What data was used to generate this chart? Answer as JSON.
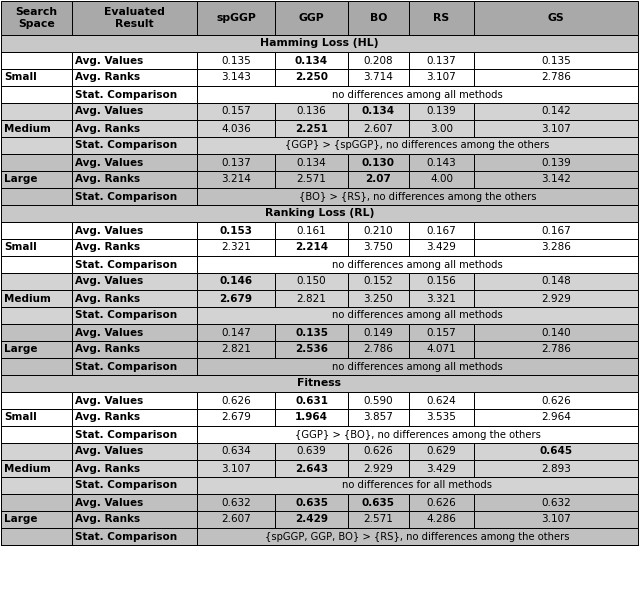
{
  "col_headers": [
    "Search\nSpace",
    "Evaluated\nResult",
    "spGGP",
    "GGP",
    "BO",
    "RS",
    "GS"
  ],
  "sections": [
    {
      "name": "Hamming Loss (HL)",
      "groups": [
        {
          "label": "Small",
          "rows": [
            {
              "name": "Avg. Values",
              "vals": [
                "0.135",
                "0.134",
                "0.208",
                "0.137",
                "0.135"
              ],
              "bold": [
                false,
                true,
                false,
                false,
                false
              ]
            },
            {
              "name": "Avg. Ranks",
              "vals": [
                "3.143",
                "2.250",
                "3.714",
                "3.107",
                "2.786"
              ],
              "bold": [
                false,
                true,
                false,
                false,
                false
              ]
            },
            {
              "name": "Stat. Comparison",
              "span_text": "no differences among all methods"
            }
          ],
          "bg": "#ffffff"
        },
        {
          "label": "Medium",
          "rows": [
            {
              "name": "Avg. Values",
              "vals": [
                "0.157",
                "0.136",
                "0.134",
                "0.139",
                "0.142"
              ],
              "bold": [
                false,
                false,
                true,
                false,
                false
              ]
            },
            {
              "name": "Avg. Ranks",
              "vals": [
                "4.036",
                "2.251",
                "2.607",
                "3.00",
                "3.107"
              ],
              "bold": [
                false,
                true,
                false,
                false,
                false
              ]
            },
            {
              "name": "Stat. Comparison",
              "span_text": "{GGP} > {spGGP}, no differences among the others"
            }
          ],
          "bg": "#d3d3d3"
        },
        {
          "label": "Large",
          "rows": [
            {
              "name": "Avg. Values",
              "vals": [
                "0.137",
                "0.134",
                "0.130",
                "0.143",
                "0.139"
              ],
              "bold": [
                false,
                false,
                true,
                false,
                false
              ]
            },
            {
              "name": "Avg. Ranks",
              "vals": [
                "3.214",
                "2.571",
                "2.07",
                "4.00",
                "3.142"
              ],
              "bold": [
                false,
                false,
                true,
                false,
                false
              ]
            },
            {
              "name": "Stat. Comparison",
              "span_text": "{BO} > {RS}, no differences among the others"
            }
          ],
          "bg": "#c0c0c0"
        }
      ]
    },
    {
      "name": "Ranking Loss (RL)",
      "groups": [
        {
          "label": "Small",
          "rows": [
            {
              "name": "Avg. Values",
              "vals": [
                "0.153",
                "0.161",
                "0.210",
                "0.167",
                "0.167"
              ],
              "bold": [
                true,
                false,
                false,
                false,
                false
              ]
            },
            {
              "name": "Avg. Ranks",
              "vals": [
                "2.321",
                "2.214",
                "3.750",
                "3.429",
                "3.286"
              ],
              "bold": [
                false,
                true,
                false,
                false,
                false
              ]
            },
            {
              "name": "Stat. Comparison",
              "span_text": "no differences among all methods"
            }
          ],
          "bg": "#ffffff"
        },
        {
          "label": "Medium",
          "rows": [
            {
              "name": "Avg. Values",
              "vals": [
                "0.146",
                "0.150",
                "0.152",
                "0.156",
                "0.148"
              ],
              "bold": [
                true,
                false,
                false,
                false,
                false
              ]
            },
            {
              "name": "Avg. Ranks",
              "vals": [
                "2.679",
                "2.821",
                "3.250",
                "3.321",
                "2.929"
              ],
              "bold": [
                true,
                false,
                false,
                false,
                false
              ]
            },
            {
              "name": "Stat. Comparison",
              "span_text": "no differences among all methods"
            }
          ],
          "bg": "#d3d3d3"
        },
        {
          "label": "Large",
          "rows": [
            {
              "name": "Avg. Values",
              "vals": [
                "0.147",
                "0.135",
                "0.149",
                "0.157",
                "0.140"
              ],
              "bold": [
                false,
                true,
                false,
                false,
                false
              ]
            },
            {
              "name": "Avg. Ranks",
              "vals": [
                "2.821",
                "2.536",
                "2.786",
                "4.071",
                "2.786"
              ],
              "bold": [
                false,
                true,
                false,
                false,
                false
              ]
            },
            {
              "name": "Stat. Comparison",
              "span_text": "no differences among all methods"
            }
          ],
          "bg": "#c0c0c0"
        }
      ]
    },
    {
      "name": "Fitness",
      "groups": [
        {
          "label": "Small",
          "rows": [
            {
              "name": "Avg. Values",
              "vals": [
                "0.626",
                "0.631",
                "0.590",
                "0.624",
                "0.626"
              ],
              "bold": [
                false,
                true,
                false,
                false,
                false
              ]
            },
            {
              "name": "Avg. Ranks",
              "vals": [
                "2.679",
                "1.964",
                "3.857",
                "3.535",
                "2.964"
              ],
              "bold": [
                false,
                true,
                false,
                false,
                false
              ]
            },
            {
              "name": "Stat. Comparison",
              "span_text": "{GGP} > {BO}, no differences among the others"
            }
          ],
          "bg": "#ffffff"
        },
        {
          "label": "Medium",
          "rows": [
            {
              "name": "Avg. Values",
              "vals": [
                "0.634",
                "0.639",
                "0.626",
                "0.629",
                "0.645"
              ],
              "bold": [
                false,
                false,
                false,
                false,
                true
              ]
            },
            {
              "name": "Avg. Ranks",
              "vals": [
                "3.107",
                "2.643",
                "2.929",
                "3.429",
                "2.893"
              ],
              "bold": [
                false,
                true,
                false,
                false,
                false
              ]
            },
            {
              "name": "Stat. Comparison",
              "span_text": "no differences for all methods"
            }
          ],
          "bg": "#d3d3d3"
        },
        {
          "label": "Large",
          "rows": [
            {
              "name": "Avg. Values",
              "vals": [
                "0.632",
                "0.635",
                "0.635",
                "0.626",
                "0.632"
              ],
              "bold": [
                false,
                true,
                true,
                false,
                false
              ]
            },
            {
              "name": "Avg. Ranks",
              "vals": [
                "2.607",
                "2.429",
                "2.571",
                "4.286",
                "3.107"
              ],
              "bold": [
                false,
                true,
                false,
                false,
                false
              ]
            },
            {
              "name": "Stat. Comparison",
              "span_text": "{spGGP, GGP, BO} > {RS}, no differences among the others"
            }
          ],
          "bg": "#c0c0c0"
        }
      ]
    }
  ],
  "header_bg": "#a9a9a9",
  "section_bg": "#c8c8c8",
  "fig_width": 6.4,
  "fig_height": 6.1,
  "dpi": 100
}
